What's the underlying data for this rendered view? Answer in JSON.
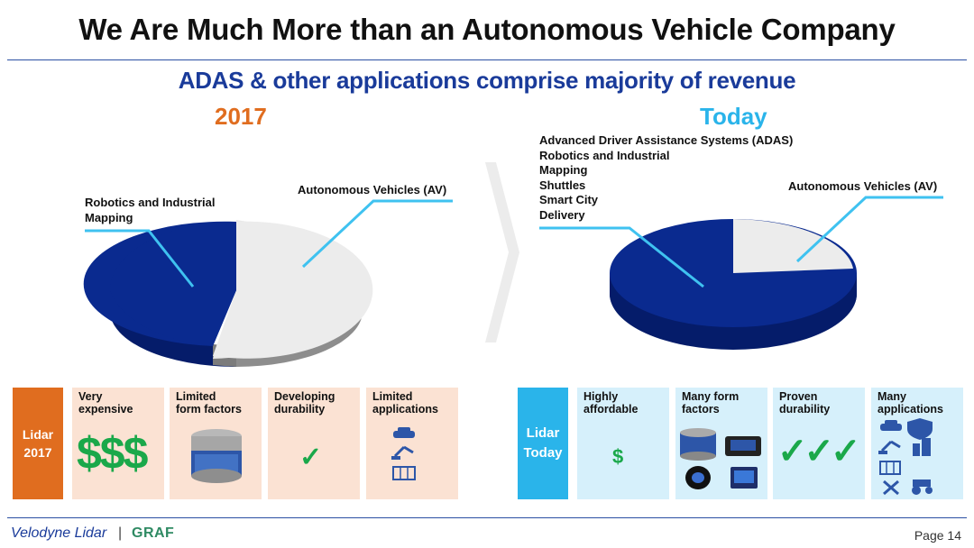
{
  "title": "We Are Much More than an Autonomous Vehicle Company",
  "subtitle": "ADAS & other applications comprise majority of revenue",
  "left": {
    "year": "2017",
    "label_left": [
      "Robotics and Industrial",
      "Mapping"
    ],
    "label_right": "Autonomous Vehicles (AV)",
    "tag": [
      "Lidar",
      "2017"
    ],
    "cards": [
      {
        "title": [
          "Very",
          "expensive"
        ],
        "symbol": "$$$"
      },
      {
        "title": [
          "Limited",
          "form factors"
        ]
      },
      {
        "title": [
          "Developing",
          "durability"
        ],
        "symbol": "✓"
      },
      {
        "title": [
          "Limited",
          "applications"
        ]
      }
    ]
  },
  "right": {
    "year": "Today",
    "label_left": [
      "Advanced Driver Assistance Systems (ADAS)",
      "Robotics and Industrial",
      "Mapping",
      "Shuttles",
      "Smart City",
      "Delivery"
    ],
    "label_right": "Autonomous Vehicles (AV)",
    "tag": [
      "Lidar",
      "Today"
    ],
    "cards": [
      {
        "title": [
          "Highly",
          "affordable"
        ],
        "symbol": "$"
      },
      {
        "title": [
          "Many form",
          "factors"
        ]
      },
      {
        "title": [
          "Proven",
          "durability"
        ],
        "symbol": "✓✓✓"
      },
      {
        "title": [
          "Many",
          "applications"
        ]
      }
    ]
  },
  "footer": {
    "brand": "Velodyne Lidar",
    "separator": "|",
    "partner": "GRAF",
    "page": "Page 14"
  },
  "colors": {
    "dark_blue": "#0a2a8f",
    "light_grey": "#e8e8e8",
    "orange": "#e06d1f",
    "cyan": "#2ab4ea",
    "green": "#1aa84a"
  }
}
